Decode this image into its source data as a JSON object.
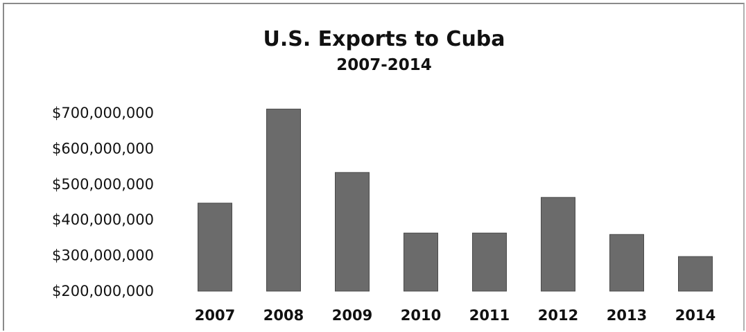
{
  "chart_data": {
    "type": "bar",
    "title": "U.S. Exports to Cuba",
    "subtitle": "2007-2014",
    "xlabel": "",
    "ylabel": "",
    "categories": [
      "2007",
      "2008",
      "2009",
      "2010",
      "2011",
      "2012",
      "2013",
      "2014"
    ],
    "values": [
      447000000,
      711000000,
      533000000,
      363000000,
      363000000,
      463000000,
      359000000,
      297000000
    ],
    "ylim": [
      200000000,
      700000000
    ],
    "yticks": [
      700000000,
      600000000,
      500000000,
      400000000,
      300000000,
      200000000
    ],
    "ytick_labels": [
      "$700,000,000",
      "$600,000,000",
      "$500,000,000",
      "$400,000,000",
      "$300,000,000",
      "$200,000,000"
    ],
    "grid": false,
    "legend": "none",
    "bar_color": "#6b6b6b"
  }
}
